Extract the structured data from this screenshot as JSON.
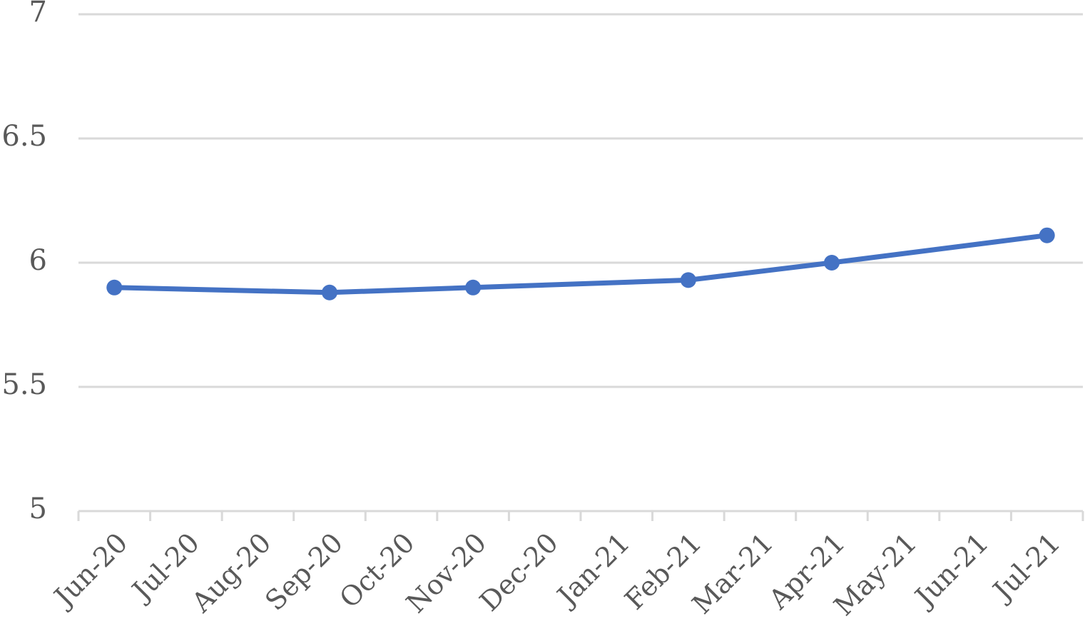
{
  "chart_data": {
    "type": "line",
    "title": "",
    "xlabel": "",
    "ylabel": "",
    "categories": [
      "Jun-20",
      "Jul-20",
      "Aug-20",
      "Sep-20",
      "Oct-20",
      "Nov-20",
      "Dec-20",
      "Jan-21",
      "Feb-21",
      "Mar-21",
      "Apr-21",
      "May-21",
      "Jun-21",
      "Jul-21"
    ],
    "y_ticks": [
      "5",
      "5.5",
      "6",
      "6.5",
      "7"
    ],
    "ylim": [
      5,
      7
    ],
    "grid": true,
    "series": [
      {
        "color": "#4472C4",
        "points": [
          {
            "x": "Jun-20",
            "y": 5.9
          },
          {
            "x": "Sep-20",
            "y": 5.88
          },
          {
            "x": "Nov-20",
            "y": 5.9
          },
          {
            "x": "Feb-21",
            "y": 5.93
          },
          {
            "x": "Apr-21",
            "y": 6.0
          },
          {
            "x": "Jul-21",
            "y": 6.11
          }
        ]
      }
    ]
  }
}
